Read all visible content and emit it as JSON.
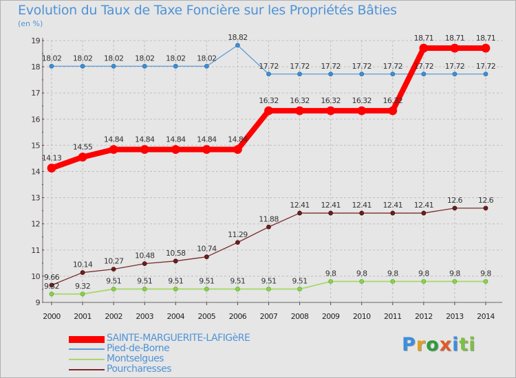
{
  "chart_data": {
    "type": "line",
    "title": "Evolution du Taux de Taxe Foncière sur les Propriétés Bâties",
    "subtitle": "(en %)",
    "xlabel": "",
    "ylabel": "",
    "x": [
      "2000",
      "2001",
      "2002",
      "2003",
      "2004",
      "2005",
      "2006",
      "2007",
      "2008",
      "2009",
      "2010",
      "2011",
      "2012",
      "2013",
      "2014"
    ],
    "ylim": [
      9,
      19
    ],
    "yticks": [
      "9",
      "10",
      "11",
      "12",
      "13",
      "14",
      "15",
      "16",
      "17",
      "18",
      "19"
    ],
    "grid": "horizontal-dashed",
    "series": [
      {
        "name": "SAINTE-MARGUERITE-LAFIGèRE",
        "color": "#ff0000",
        "values": [
          14.13,
          14.55,
          14.84,
          14.84,
          14.84,
          14.84,
          14.84,
          16.32,
          16.32,
          16.32,
          16.32,
          16.32,
          18.71,
          18.71,
          18.71
        ],
        "labels": [
          "14.13",
          "14.55",
          "14.84",
          "14.84",
          "14.84",
          "14.84",
          "14.84",
          "16.32",
          "16.32",
          "16.32",
          "16.32",
          "16.32",
          "18.71",
          "18.71",
          "18.71"
        ]
      },
      {
        "name": "Pied-de-Borne",
        "color": "#5b9bd5",
        "values": [
          18.02,
          18.02,
          18.02,
          18.02,
          18.02,
          18.02,
          18.82,
          17.72,
          17.72,
          17.72,
          17.72,
          17.72,
          17.72,
          17.72,
          17.72
        ],
        "labels": [
          "18.02",
          "18.02",
          "18.02",
          "18.02",
          "18.02",
          "18.02",
          "18.82",
          "17.72",
          "17.72",
          "17.72",
          "17.72",
          "17.72",
          "17.72",
          "17.72",
          "17.72"
        ]
      },
      {
        "name": "Montselgues",
        "color": "#a6d96a",
        "values": [
          9.32,
          9.32,
          9.51,
          9.51,
          9.51,
          9.51,
          9.51,
          9.51,
          9.51,
          9.8,
          9.8,
          9.8,
          9.8,
          9.8,
          9.8
        ],
        "labels": [
          "9.32",
          "9.32",
          "9.51",
          "9.51",
          "9.51",
          "9.51",
          "9.51",
          "9.51",
          "9.51",
          "9.8",
          "9.8",
          "9.8",
          "9.8",
          "9.8",
          "9.8"
        ]
      },
      {
        "name": "Pourcharesses",
        "color": "#7a2a2a",
        "values": [
          9.66,
          10.14,
          10.27,
          10.48,
          10.58,
          10.74,
          11.29,
          11.88,
          12.41,
          12.41,
          12.41,
          12.41,
          12.41,
          12.6,
          12.6
        ],
        "labels": [
          "9.66",
          "10.14",
          "10.27",
          "10.48",
          "10.58",
          "10.74",
          "11.29",
          "11.88",
          "12.41",
          "12.41",
          "12.41",
          "12.41",
          "12.41",
          "12.6",
          "12.6"
        ]
      }
    ],
    "legend": "bottom-left"
  },
  "logo_text": "Proxiti",
  "logo_letters": [
    "P",
    "r",
    "o",
    "x",
    "i",
    "ti"
  ]
}
